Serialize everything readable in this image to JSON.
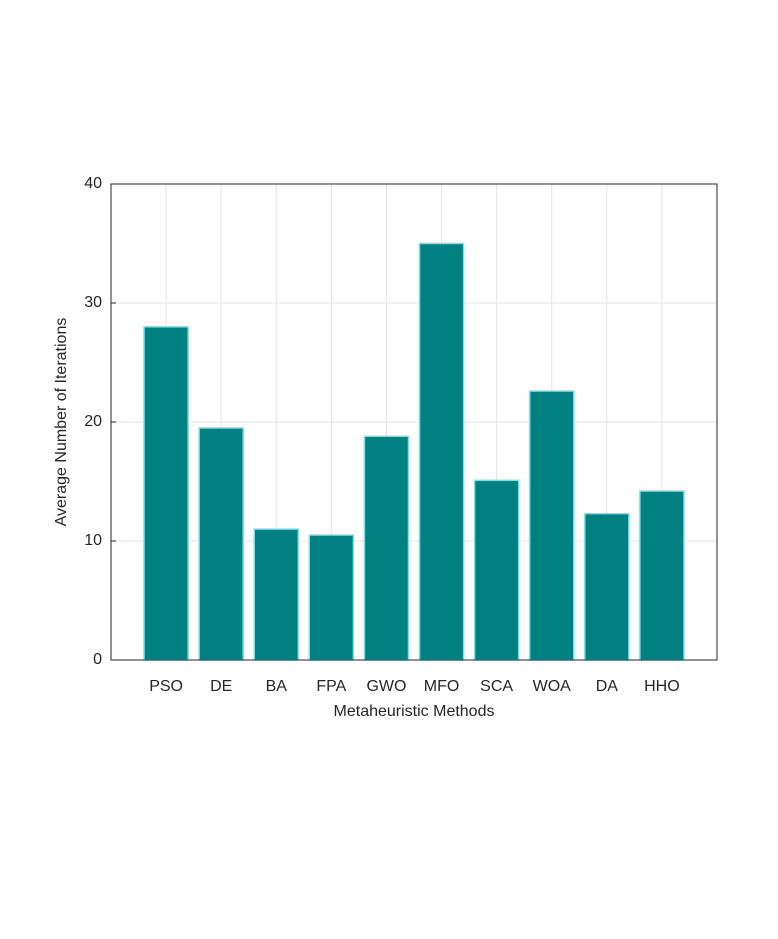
{
  "chart_data": {
    "type": "bar",
    "x_label": "Metaheuristic Methods",
    "y_label": "Average Number of Iterations",
    "categories": [
      "PSO",
      "DE",
      "BA",
      "FPA",
      "GWO",
      "MFO",
      "SCA",
      "WOA",
      "DA",
      "HHO"
    ],
    "values": [
      28.0,
      19.5,
      11.0,
      10.5,
      18.8,
      35.0,
      15.1,
      22.6,
      12.3,
      14.2
    ],
    "color": "#008080",
    "edge_color": "#7fdfe8",
    "ylim": [
      0,
      40
    ],
    "yticks": [
      0,
      10,
      20,
      30,
      40
    ],
    "grid": true
  }
}
